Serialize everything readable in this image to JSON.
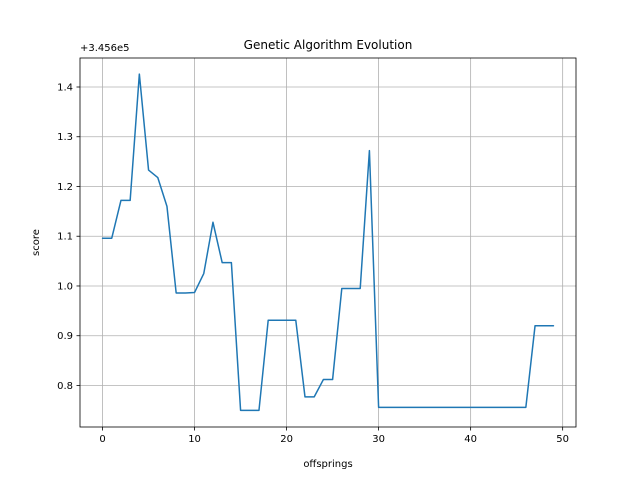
{
  "chart_data": {
    "type": "line",
    "title": "Genetic Algorithm Evolution",
    "xlabel": "offsprings",
    "ylabel": "score",
    "offset_text": "+3.456e5",
    "xlim": [
      -2.45,
      51.45
    ],
    "ylim": [
      0.7165,
      1.4583
    ],
    "x_ticks": [
      0,
      10,
      20,
      30,
      40,
      50
    ],
    "y_ticks": [
      0.8,
      0.9,
      1.0,
      1.1,
      1.2,
      1.3,
      1.4
    ],
    "y_tick_labels": [
      "0.8",
      "0.9",
      "1.0",
      "1.1",
      "1.2",
      "1.3",
      "1.4"
    ],
    "grid": true,
    "line_color": "#1f77b4",
    "series": [
      {
        "x": [
          0,
          1,
          2,
          3,
          4,
          5,
          6,
          7,
          8,
          9,
          10,
          11,
          12,
          13,
          14,
          15,
          16,
          17,
          18,
          19,
          20,
          21,
          22,
          23,
          24,
          25,
          26,
          27,
          28,
          29,
          30,
          31,
          32,
          33,
          34,
          35,
          36,
          37,
          38,
          39,
          40,
          41,
          42,
          43,
          44,
          45,
          46,
          47,
          48,
          49
        ],
        "values": [
          1.096,
          1.096,
          1.172,
          1.172,
          1.426,
          1.233,
          1.218,
          1.16,
          0.986,
          0.986,
          0.987,
          1.025,
          1.128,
          1.047,
          1.047,
          0.75,
          0.75,
          0.75,
          0.931,
          0.931,
          0.931,
          0.931,
          0.777,
          0.777,
          0.812,
          0.812,
          0.995,
          0.995,
          0.995,
          1.272,
          0.756,
          0.756,
          0.756,
          0.756,
          0.756,
          0.756,
          0.756,
          0.756,
          0.756,
          0.756,
          0.756,
          0.756,
          0.756,
          0.756,
          0.756,
          0.756,
          0.756,
          0.92,
          0.92,
          0.92
        ]
      }
    ]
  }
}
